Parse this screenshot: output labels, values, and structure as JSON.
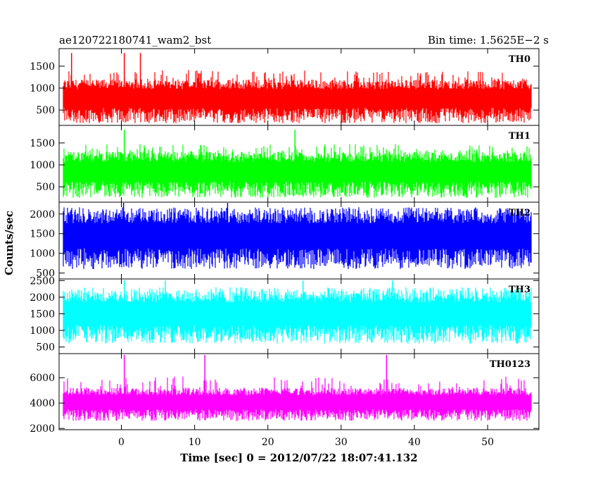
{
  "chart_data": {
    "type": "line",
    "title_left": "ae120722180741_wam2_bst",
    "title_right": "Bin time: 1.5625E−2 s",
    "xlabel": "Time [sec] 0 = 2012/07/22 18:07:41.132",
    "ylabel": "Counts/sec",
    "xlim": [
      -8.5,
      57
    ],
    "x_range_data": [
      -8,
      56
    ],
    "bin_time": 0.015625,
    "x_ticks": [
      0,
      10,
      20,
      30,
      40,
      50
    ],
    "grid": false,
    "legend": "panel labels top-right of each panel",
    "panels": [
      {
        "name": "TH0",
        "color": "#ff0000",
        "ylim": [
          150,
          1900
        ],
        "y_ticks": [
          500,
          1000,
          1500
        ],
        "typical_range": [
          200,
          1200
        ],
        "max_spike": 1800,
        "spike_times": [
          -6.8,
          0.4,
          2.6
        ]
      },
      {
        "name": "TH1",
        "color": "#00ff00",
        "ylim": [
          150,
          1900
        ],
        "y_ticks": [
          500,
          1000,
          1500
        ],
        "typical_range": [
          250,
          1300
        ],
        "max_spike": 1800,
        "spike_times": [
          0.4,
          23.7
        ]
      },
      {
        "name": "TH2",
        "color": "#0000ff",
        "ylim": [
          350,
          2300
        ],
        "y_ticks": [
          500,
          1000,
          1500,
          2000
        ],
        "typical_range": [
          600,
          2100
        ],
        "max_spike": 2300,
        "spike_times": [
          0.3,
          14.5
        ]
      },
      {
        "name": "TH3",
        "color": "#00ffff",
        "ylim": [
          300,
          2550
        ],
        "y_ticks": [
          500,
          1000,
          1500,
          2000,
          2500
        ],
        "typical_range": [
          600,
          2200
        ],
        "max_spike": 2500,
        "spike_times": [
          0.4,
          6.0,
          24.8,
          37.0
        ]
      },
      {
        "name": "TH0123",
        "color": "#ff00ff",
        "ylim": [
          1900,
          7900
        ],
        "y_ticks": [
          2000,
          4000,
          6000
        ],
        "typical_range": [
          2600,
          5200
        ],
        "max_spike": 7800,
        "spike_times": [
          0.4,
          11.4,
          36.2
        ]
      }
    ]
  }
}
